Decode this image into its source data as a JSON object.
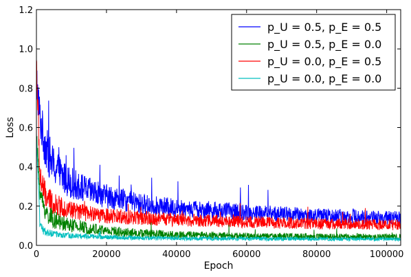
{
  "chart_data": {
    "type": "line",
    "title": "",
    "xlabel": "Epoch",
    "ylabel": "Loss",
    "xlim": [
      0,
      104000
    ],
    "ylim": [
      0,
      1.2
    ],
    "x_ticks": [
      0,
      20000,
      40000,
      60000,
      80000,
      100000
    ],
    "x_tick_labels": [
      "0",
      "20000",
      "40000",
      "60000",
      "80000",
      "100000"
    ],
    "y_ticks": [
      0,
      0.2,
      0.4,
      0.6,
      0.8,
      1.0,
      1.2
    ],
    "y_tick_labels": [
      "0.0",
      "0.2",
      "0.4",
      "0.6",
      "0.8",
      "1.0",
      "1.2"
    ],
    "grid": false,
    "legend_position": "top-right",
    "series": [
      {
        "name": "p_U = 0.5, p_E = 0.5",
        "color": "#0000ff",
        "x": [
          0,
          1000,
          2000,
          3000,
          5000,
          8000,
          12000,
          16000,
          20000,
          25000,
          30000,
          40000,
          50000,
          60000,
          70000,
          80000,
          90000,
          100000,
          104000
        ],
        "y": [
          0.85,
          0.65,
          0.55,
          0.48,
          0.4,
          0.34,
          0.3,
          0.27,
          0.25,
          0.23,
          0.21,
          0.19,
          0.18,
          0.17,
          0.16,
          0.15,
          0.15,
          0.14,
          0.14
        ]
      },
      {
        "name": "p_U = 0.5, p_E = 0.0",
        "color": "#008000",
        "x": [
          0,
          1000,
          2000,
          3000,
          5000,
          8000,
          12000,
          16000,
          20000,
          25000,
          30000,
          40000,
          50000,
          60000,
          70000,
          80000,
          90000,
          100000,
          104000
        ],
        "y": [
          0.55,
          0.28,
          0.2,
          0.16,
          0.13,
          0.11,
          0.095,
          0.085,
          0.075,
          0.068,
          0.062,
          0.055,
          0.05,
          0.048,
          0.046,
          0.045,
          0.044,
          0.043,
          0.043
        ]
      },
      {
        "name": "p_U = 0.0, p_E = 0.5",
        "color": "#ff0000",
        "x": [
          0,
          1000,
          2000,
          3000,
          5000,
          8000,
          12000,
          16000,
          20000,
          25000,
          30000,
          40000,
          50000,
          60000,
          70000,
          80000,
          90000,
          100000,
          104000
        ],
        "y": [
          0.95,
          0.35,
          0.28,
          0.24,
          0.21,
          0.19,
          0.17,
          0.16,
          0.15,
          0.145,
          0.14,
          0.13,
          0.125,
          0.12,
          0.115,
          0.11,
          0.11,
          0.105,
          0.105
        ]
      },
      {
        "name": "p_U = 0.0, p_E = 0.0",
        "color": "#00bfbf",
        "x": [
          0,
          1000,
          2000,
          3000,
          5000,
          8000,
          12000,
          16000,
          20000,
          25000,
          30000,
          40000,
          50000,
          60000,
          70000,
          80000,
          90000,
          100000,
          104000
        ],
        "y": [
          0.55,
          0.1,
          0.075,
          0.065,
          0.058,
          0.052,
          0.048,
          0.045,
          0.042,
          0.04,
          0.038,
          0.036,
          0.035,
          0.034,
          0.033,
          0.033,
          0.032,
          0.032,
          0.032
        ]
      }
    ]
  }
}
